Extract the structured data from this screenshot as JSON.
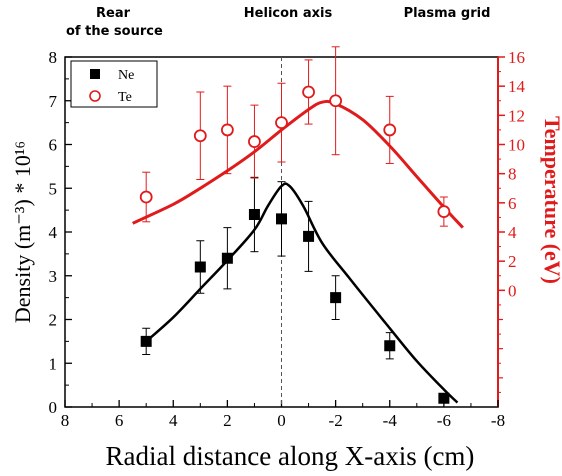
{
  "annotations": {
    "rear": [
      "Rear",
      "of the source"
    ],
    "axis": "Helicon axis",
    "grid": "Plasma grid"
  },
  "chart_data": {
    "type": "scatter",
    "x_label": "Radial distance along X-axis (cm)",
    "y_label": "Density (m⁻³) * 10¹⁶",
    "y2_label": "Temperature (eV)",
    "x_range": [
      8,
      -8
    ],
    "x_ticks": [
      8,
      6,
      4,
      2,
      0,
      -2,
      -4,
      -6,
      -8
    ],
    "y_range": [
      0,
      8
    ],
    "y_ticks": [
      0,
      1,
      2,
      3,
      4,
      5,
      6,
      7,
      8
    ],
    "y2_range": [
      -8,
      16
    ],
    "y2_ticks": [
      0,
      2,
      4,
      6,
      8,
      10,
      12,
      14,
      16
    ],
    "legend": {
      "position": "top-left"
    },
    "series": [
      {
        "name": "Ne",
        "axis": "left",
        "color": "#000000",
        "marker": "filled-square",
        "points": [
          {
            "x": 5,
            "y": 1.5,
            "err": 0.3
          },
          {
            "x": 3,
            "y": 3.2,
            "err": 0.6
          },
          {
            "x": 2,
            "y": 3.4,
            "err": 0.7
          },
          {
            "x": 1,
            "y": 4.4,
            "err": 0.85
          },
          {
            "x": 0,
            "y": 4.3,
            "err": 0.85
          },
          {
            "x": -1,
            "y": 3.9,
            "err": 0.8
          },
          {
            "x": -2,
            "y": 2.5,
            "err": 0.5
          },
          {
            "x": -4,
            "y": 1.4,
            "err": 0.3
          },
          {
            "x": -6,
            "y": 0.2,
            "err": 0
          }
        ],
        "fit": [
          [
            5,
            1.5
          ],
          [
            4,
            2.05
          ],
          [
            3,
            2.7
          ],
          [
            2,
            3.35
          ],
          [
            1,
            4.05
          ],
          [
            0.5,
            4.6
          ],
          [
            0,
            5.05
          ],
          [
            -0.3,
            5.05
          ],
          [
            -0.8,
            4.6
          ],
          [
            -1.5,
            3.75
          ],
          [
            -2.5,
            2.95
          ],
          [
            -4,
            1.8
          ],
          [
            -5,
            1.05
          ],
          [
            -6,
            0.4
          ],
          [
            -6.5,
            0.1
          ]
        ]
      },
      {
        "name": "Te",
        "axis": "right",
        "color": "#e01b1b",
        "marker": "open-circle",
        "points": [
          {
            "x": 5,
            "y": 6.4,
            "err": 1.7
          },
          {
            "x": 3,
            "y": 10.6,
            "err": 3.0
          },
          {
            "x": 2,
            "y": 11.0,
            "err": 3.0
          },
          {
            "x": 1,
            "y": 10.2,
            "err": 2.5
          },
          {
            "x": 0,
            "y": 11.5,
            "err": 2.7
          },
          {
            "x": -1,
            "y": 13.6,
            "err": 2.2
          },
          {
            "x": -2,
            "y": 13.0,
            "err": 3.7
          },
          {
            "x": -4,
            "y": 11.0,
            "err": 2.3
          },
          {
            "x": -6,
            "y": 5.4,
            "err": 1.0
          }
        ],
        "fit": [
          [
            5.5,
            4.6
          ],
          [
            4,
            5.9
          ],
          [
            3,
            7.0
          ],
          [
            2,
            8.2
          ],
          [
            1,
            9.5
          ],
          [
            0,
            11.0
          ],
          [
            -1,
            12.4
          ],
          [
            -1.5,
            12.9
          ],
          [
            -2,
            12.8
          ],
          [
            -3,
            11.7
          ],
          [
            -4,
            9.9
          ],
          [
            -5,
            7.8
          ],
          [
            -6,
            5.7
          ],
          [
            -6.7,
            4.3
          ]
        ]
      }
    ]
  }
}
